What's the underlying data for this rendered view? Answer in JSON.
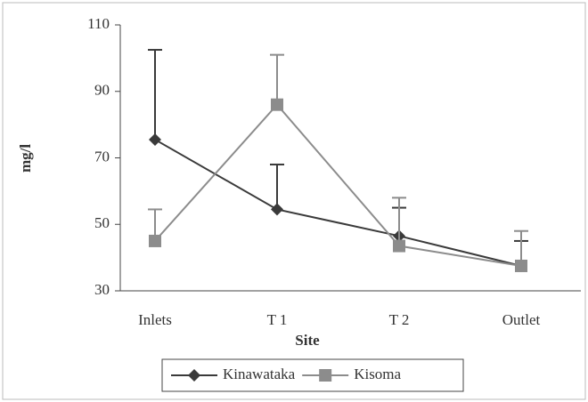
{
  "chart_data": {
    "type": "line",
    "x_label": "Site",
    "y_label": "mg/l",
    "categories": [
      "Inlets",
      "T 1",
      "T 2",
      "Outlet"
    ],
    "series": [
      {
        "name": "Kinawataka",
        "color": "#3a3a3a",
        "marker": "diamond",
        "values": [
          75.5,
          54.5,
          46.5,
          37.5
        ],
        "errors": [
          27,
          13.5,
          8.5,
          7.5
        ]
      },
      {
        "name": "Kisoma",
        "color": "#8c8c8c",
        "marker": "square",
        "values": [
          45,
          86,
          43.5,
          37.5
        ],
        "errors": [
          9.5,
          15,
          14.5,
          10.5
        ]
      }
    ],
    "ylim": [
      30,
      110
    ],
    "yticks": [
      30,
      50,
      70,
      90,
      110
    ],
    "legend": "bottom"
  }
}
